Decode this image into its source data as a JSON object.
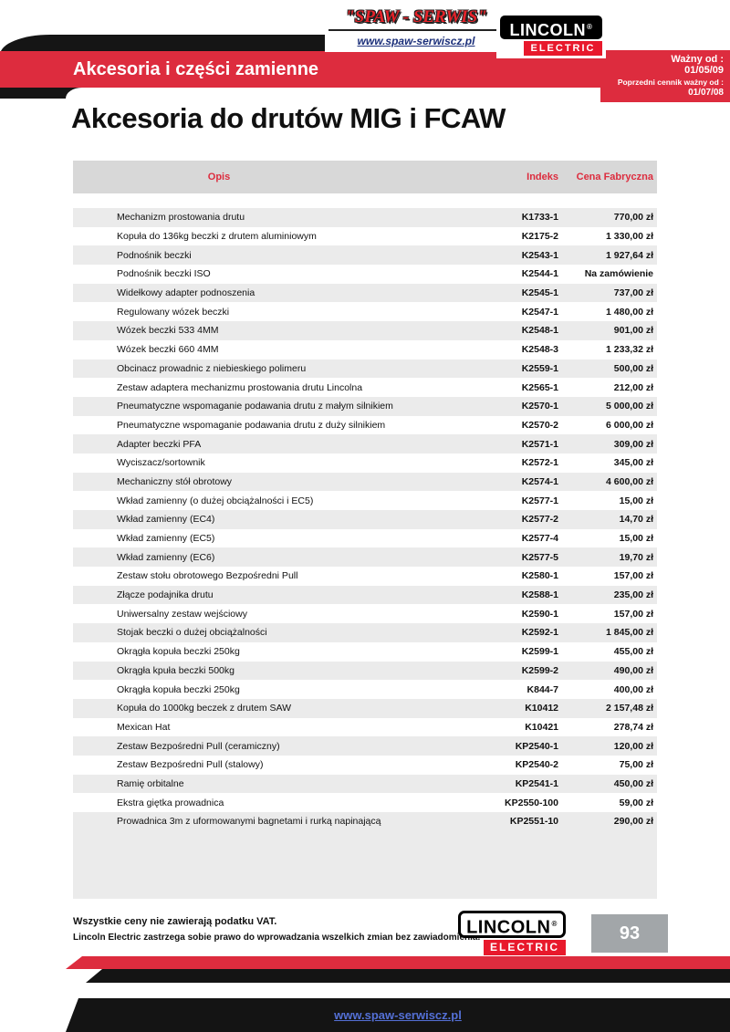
{
  "brand": {
    "spaw_title": "\"SPAW - SERWIS\"",
    "spaw_url": "www.spaw-serwiscz.pl",
    "lincoln": "LINCOLN",
    "electric": "ELECTRIC",
    "registered": "®"
  },
  "header": {
    "band_title": "Akcesoria i części zamienne",
    "valid_from_label": "Ważny od :",
    "valid_from_date": "01/05/09",
    "previous_label": "Poprzedni cennik ważny od :",
    "previous_date": "01/07/08"
  },
  "section_title": "Akcesoria do drutów MIG i FCAW",
  "table": {
    "columns": {
      "opis": "Opis",
      "indeks": "Indeks",
      "cena": "Cena Fabryczna"
    },
    "rows": [
      {
        "opis": "Mechanizm prostowania drutu",
        "indeks": "K1733-1",
        "cena": "770,00 zł"
      },
      {
        "opis": "Kopuła do 136kg beczki z drutem aluminiowym",
        "indeks": "K2175-2",
        "cena": "1 330,00 zł"
      },
      {
        "opis": "Podnośnik beczki",
        "indeks": "K2543-1",
        "cena": "1 927,64 zł"
      },
      {
        "opis": "Podnośnik beczki ISO",
        "indeks": "K2544-1",
        "cena": "Na zamówienie"
      },
      {
        "opis": "Widełkowy adapter podnoszenia",
        "indeks": "K2545-1",
        "cena": "737,00 zł"
      },
      {
        "opis": "Regulowany wózek beczki",
        "indeks": "K2547-1",
        "cena": "1 480,00 zł"
      },
      {
        "opis": "Wózek beczki 533 4MM",
        "indeks": "K2548-1",
        "cena": "901,00 zł"
      },
      {
        "opis": "Wózek beczki 660 4MM",
        "indeks": "K2548-3",
        "cena": "1 233,32 zł"
      },
      {
        "opis": "Obcinacz prowadnic z niebieskiego polimeru",
        "indeks": "K2559-1",
        "cena": "500,00 zł"
      },
      {
        "opis": "Zestaw adaptera mechanizmu prostowania drutu Lincolna",
        "indeks": "K2565-1",
        "cena": "212,00 zł"
      },
      {
        "opis": "Pneumatyczne wspomaganie podawania drutu z małym silnikiem",
        "indeks": "K2570-1",
        "cena": "5 000,00 zł"
      },
      {
        "opis": "Pneumatyczne wspomaganie podawania drutu z duży silnikiem",
        "indeks": "K2570-2",
        "cena": "6 000,00 zł"
      },
      {
        "opis": "Adapter beczki PFA",
        "indeks": "K2571-1",
        "cena": "309,00 zł"
      },
      {
        "opis": "Wyciszacz/sortownik",
        "indeks": "K2572-1",
        "cena": "345,00 zł"
      },
      {
        "opis": "Mechaniczny stół obrotowy",
        "indeks": "K2574-1",
        "cena": "4 600,00 zł"
      },
      {
        "opis": "Wkład zamienny (o dużej obciążalności i EC5)",
        "indeks": "K2577-1",
        "cena": "15,00 zł"
      },
      {
        "opis": "Wkład zamienny (EC4)",
        "indeks": "K2577-2",
        "cena": "14,70 zł"
      },
      {
        "opis": "Wkład zamienny (EC5)",
        "indeks": "K2577-4",
        "cena": "15,00 zł"
      },
      {
        "opis": "Wkład zamienny (EC6)",
        "indeks": "K2577-5",
        "cena": "19,70 zł"
      },
      {
        "opis": "Zestaw stołu obrotowego Bezpośredni Pull",
        "indeks": "K2580-1",
        "cena": "157,00 zł"
      },
      {
        "opis": "Złącze podajnika drutu",
        "indeks": "K2588-1",
        "cena": "235,00 zł"
      },
      {
        "opis": "Uniwersalny zestaw wejściowy",
        "indeks": "K2590-1",
        "cena": "157,00 zł"
      },
      {
        "opis": "Stojak beczki o dużej obciążalności",
        "indeks": "K2592-1",
        "cena": "1 845,00 zł"
      },
      {
        "opis": "Okrągła kopuła beczki 250kg",
        "indeks": "K2599-1",
        "cena": "455,00 zł"
      },
      {
        "opis": "Okrągła kpuła beczki 500kg",
        "indeks": "K2599-2",
        "cena": "490,00 zł"
      },
      {
        "opis": "Okrągła kopuła beczki 250kg",
        "indeks": "K844-7",
        "cena": "400,00 zł"
      },
      {
        "opis": "Kopuła do 1000kg beczek z drutem SAW",
        "indeks": "K10412",
        "cena": "2 157,48 zł"
      },
      {
        "opis": "Mexican Hat",
        "indeks": "K10421",
        "cena": "278,74 zł"
      },
      {
        "opis": "Zestaw Bezpośredni Pull (ceramiczny)",
        "indeks": "KP2540-1",
        "cena": "120,00 zł"
      },
      {
        "opis": "Zestaw Bezpośredni Pull (stalowy)",
        "indeks": "KP2540-2",
        "cena": "75,00 zł"
      },
      {
        "opis": "Ramię orbitalne",
        "indeks": "KP2541-1",
        "cena": "450,00 zł"
      },
      {
        "opis": "Ekstra giętka prowadnica",
        "indeks": "KP2550-100",
        "cena": "59,00 zł"
      },
      {
        "opis": "Prowadnica 3m z uformowanymi bagnetami i rurką napinającą",
        "indeks": "KP2551-10",
        "cena": "290,00 zł"
      }
    ]
  },
  "footer": {
    "vat_note": "Wszystkie ceny nie zawierają podatku VAT.",
    "rights_note": "Lincoln Electric zastrzega sobie prawo do wprowadzania wszelkich zmian bez zawiadomienia.",
    "page_number": "93",
    "site_url": "www.spaw-serwiscz.pl"
  },
  "colors": {
    "band_red": "#dd2c3e",
    "lincoln_red": "#e8192c",
    "row_alt_gray": "#ebebeb",
    "table_header_gray": "#d8d8d8",
    "page_number_gray": "#a2a6a9"
  }
}
